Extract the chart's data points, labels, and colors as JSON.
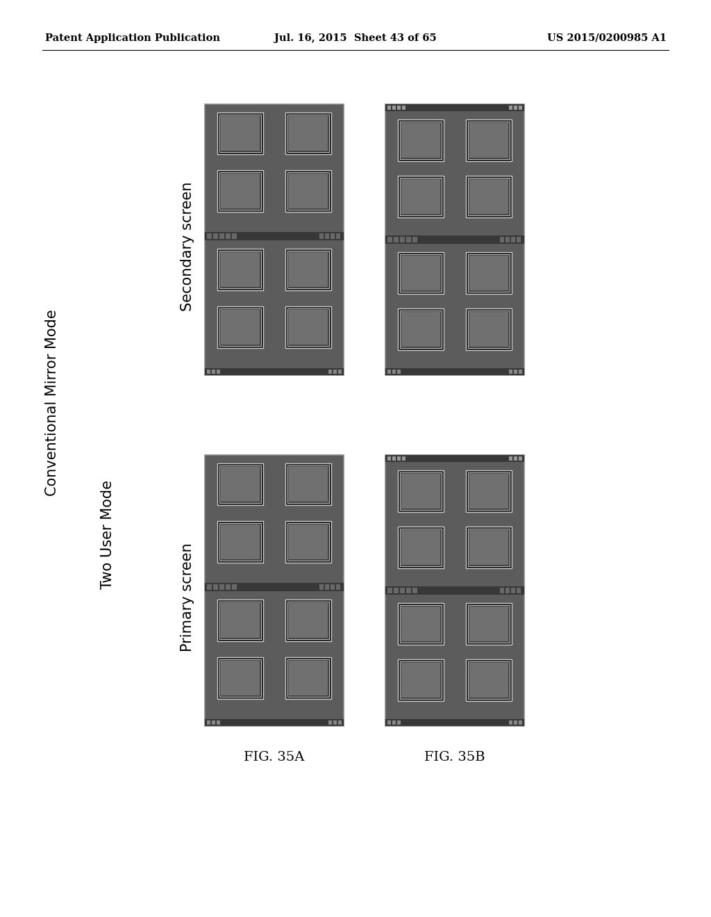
{
  "header_left": "Patent Application Publication",
  "header_center": "Jul. 16, 2015  Sheet 43 of 65",
  "header_right": "US 2015/0200985 A1",
  "label_conventional": "Conventional Mirror Mode",
  "label_two_user": "Two User Mode",
  "label_secondary": "Secondary screen",
  "label_primary": "Primary screen",
  "fig_35a": "FIG. 35A",
  "fig_35b": "FIG. 35B",
  "bg_color": "#ffffff",
  "header_font_size": 10.5,
  "label_font_size": 15,
  "fig_label_font_size": 14,
  "screen_bg": "#5c5c5c",
  "screen_edge": "#888888",
  "bar_bg": "#383838",
  "bar_item": "#787878",
  "icon_dark": "#1a1a1a",
  "icon_border": "#cccccc",
  "icon_inner": "#444444",
  "icon_content": "#707070"
}
